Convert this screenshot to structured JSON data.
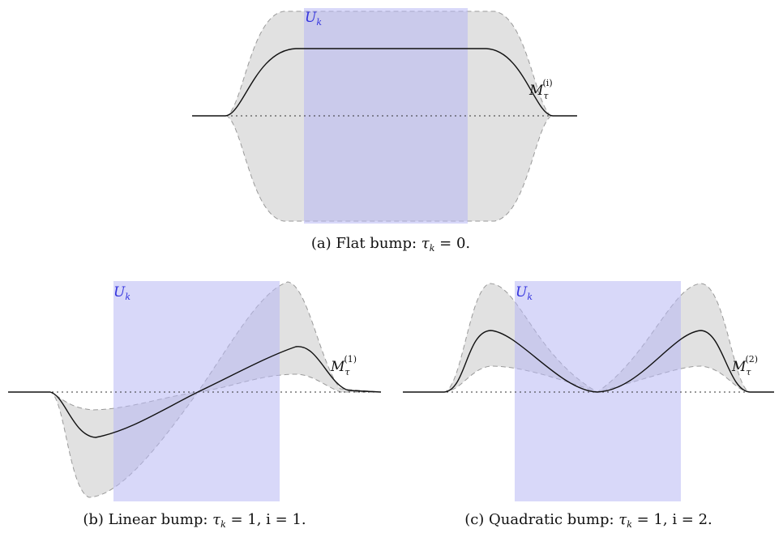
{
  "panels": [
    {
      "id": "a",
      "caption_prefix": "(a) Flat bump: ",
      "caption_math": "τ",
      "caption_sub": "k",
      "caption_rest": " = 0.",
      "region_label": "U",
      "region_sub": "k",
      "curve_label": "M",
      "curve_sub": "τ",
      "curve_sup": "(i)"
    },
    {
      "id": "b",
      "caption_prefix": "(b) Linear bump: ",
      "caption_math": "τ",
      "caption_sub": "k",
      "caption_rest": " = 1, i = 1.",
      "region_label": "U",
      "region_sub": "k",
      "curve_label": "M",
      "curve_sub": "τ",
      "curve_sup": "(1)"
    },
    {
      "id": "c",
      "caption_prefix": "(c) Quadratic bump: ",
      "caption_math": "τ",
      "caption_sub": "k",
      "caption_rest": " = 1, i = 2.",
      "region_label": "U",
      "region_sub": "k",
      "curve_label": "M",
      "curve_sub": "τ",
      "curve_sup": "(2)"
    }
  ],
  "colors": {
    "band": "#e1e1e1",
    "region": "#b8b8f4",
    "region_label": "#3333dd",
    "curve": "#111111",
    "band_edge": "#9a9a9a"
  }
}
